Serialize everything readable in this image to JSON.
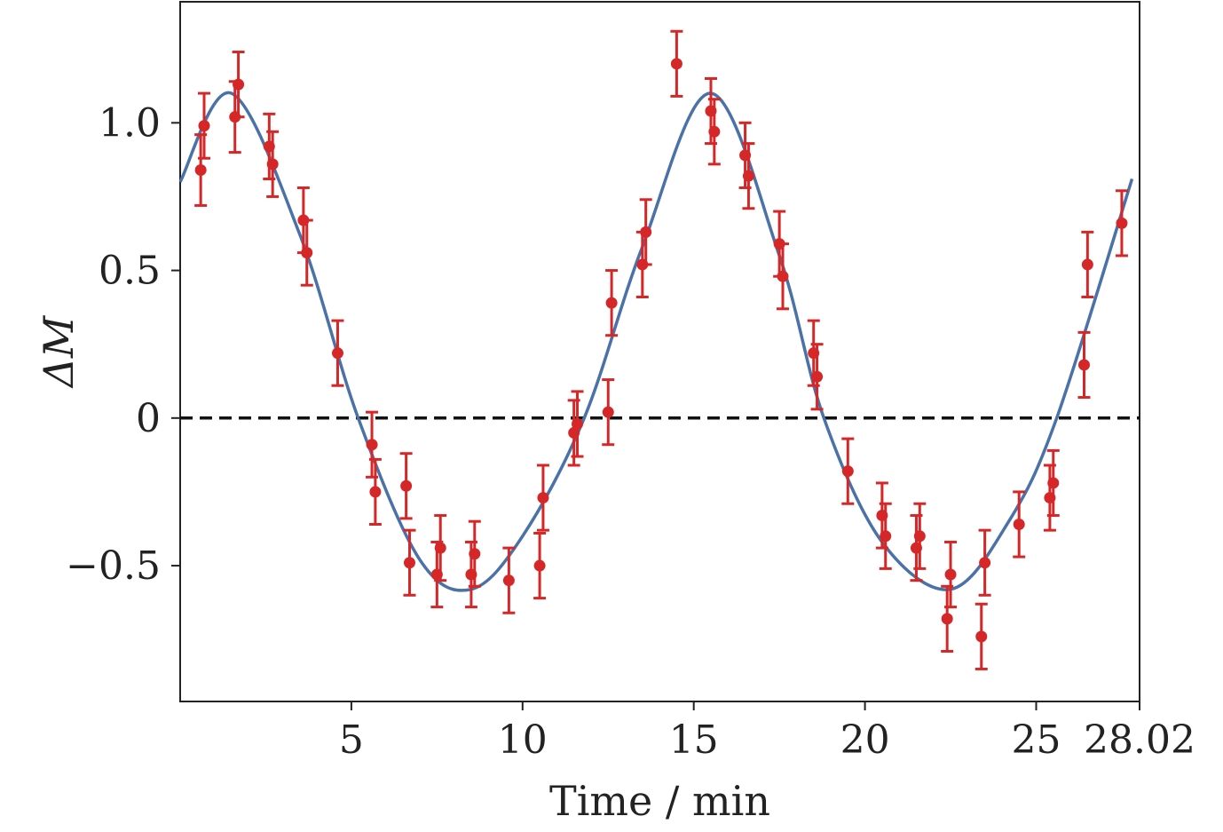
{
  "chart_data": {
    "type": "scatter",
    "title": "",
    "xlabel": "Time / min",
    "ylabel": "ΔM",
    "xlim": [
      0,
      28.02
    ],
    "ylim": [
      -0.96,
      1.41
    ],
    "xticks": [
      5,
      10,
      15,
      20,
      25,
      28.02
    ],
    "xtick_labels": [
      "5",
      "10",
      "15",
      "20",
      "25",
      "28.02"
    ],
    "yticks": [
      -0.5,
      0,
      0.5,
      1.0
    ],
    "ytick_labels": [
      "−0.5",
      "0",
      "0.5",
      "1.0"
    ],
    "grid": false,
    "reference_line": {
      "y": 0,
      "style": "dashed",
      "color": "#111111"
    },
    "fit_curve": {
      "color": "#4a72a8",
      "points": [
        [
          0,
          0.8
        ],
        [
          1.5,
          1.1
        ],
        [
          3.5,
          0.62
        ],
        [
          5.2,
          0.0
        ],
        [
          7,
          -0.48
        ],
        [
          8.5,
          -0.58
        ],
        [
          10,
          -0.4
        ],
        [
          11.8,
          0.0
        ],
        [
          13.5,
          0.58
        ],
        [
          15.5,
          1.1
        ],
        [
          17.5,
          0.55
        ],
        [
          18.8,
          0.0
        ],
        [
          20.5,
          -0.42
        ],
        [
          22.5,
          -0.58
        ],
        [
          24.2,
          -0.35
        ],
        [
          25.6,
          0.0
        ],
        [
          27.8,
          0.81
        ]
      ]
    },
    "series": [
      {
        "color": "#d62728",
        "points": [
          {
            "x": 0.6,
            "y": 0.84,
            "err": 0.12
          },
          {
            "x": 0.7,
            "y": 0.99,
            "err": 0.11
          },
          {
            "x": 1.6,
            "y": 1.02,
            "err": 0.12
          },
          {
            "x": 1.7,
            "y": 1.13,
            "err": 0.11
          },
          {
            "x": 2.6,
            "y": 0.92,
            "err": 0.11
          },
          {
            "x": 2.7,
            "y": 0.86,
            "err": 0.11
          },
          {
            "x": 3.6,
            "y": 0.67,
            "err": 0.11
          },
          {
            "x": 3.7,
            "y": 0.56,
            "err": 0.11
          },
          {
            "x": 4.6,
            "y": 0.22,
            "err": 0.11
          },
          {
            "x": 5.6,
            "y": -0.09,
            "err": 0.11
          },
          {
            "x": 5.7,
            "y": -0.25,
            "err": 0.11
          },
          {
            "x": 6.6,
            "y": -0.23,
            "err": 0.11
          },
          {
            "x": 6.7,
            "y": -0.49,
            "err": 0.11
          },
          {
            "x": 7.5,
            "y": -0.53,
            "err": 0.11
          },
          {
            "x": 7.6,
            "y": -0.44,
            "err": 0.11
          },
          {
            "x": 8.5,
            "y": -0.53,
            "err": 0.11
          },
          {
            "x": 8.6,
            "y": -0.46,
            "err": 0.11
          },
          {
            "x": 9.6,
            "y": -0.55,
            "err": 0.11
          },
          {
            "x": 10.5,
            "y": -0.5,
            "err": 0.11
          },
          {
            "x": 10.6,
            "y": -0.27,
            "err": 0.11
          },
          {
            "x": 11.5,
            "y": -0.05,
            "err": 0.11
          },
          {
            "x": 11.6,
            "y": -0.02,
            "err": 0.11
          },
          {
            "x": 12.5,
            "y": 0.02,
            "err": 0.11
          },
          {
            "x": 12.6,
            "y": 0.39,
            "err": 0.11
          },
          {
            "x": 13.5,
            "y": 0.52,
            "err": 0.11
          },
          {
            "x": 13.6,
            "y": 0.63,
            "err": 0.11
          },
          {
            "x": 14.5,
            "y": 1.2,
            "err": 0.11
          },
          {
            "x": 15.5,
            "y": 1.04,
            "err": 0.11
          },
          {
            "x": 15.6,
            "y": 0.97,
            "err": 0.11
          },
          {
            "x": 16.5,
            "y": 0.89,
            "err": 0.11
          },
          {
            "x": 16.6,
            "y": 0.82,
            "err": 0.11
          },
          {
            "x": 17.5,
            "y": 0.59,
            "err": 0.11
          },
          {
            "x": 17.6,
            "y": 0.48,
            "err": 0.11
          },
          {
            "x": 18.5,
            "y": 0.22,
            "err": 0.11
          },
          {
            "x": 18.6,
            "y": 0.14,
            "err": 0.11
          },
          {
            "x": 19.5,
            "y": -0.18,
            "err": 0.11
          },
          {
            "x": 20.5,
            "y": -0.33,
            "err": 0.11
          },
          {
            "x": 20.6,
            "y": -0.4,
            "err": 0.11
          },
          {
            "x": 21.5,
            "y": -0.44,
            "err": 0.11
          },
          {
            "x": 21.6,
            "y": -0.4,
            "err": 0.11
          },
          {
            "x": 22.4,
            "y": -0.68,
            "err": 0.11
          },
          {
            "x": 22.5,
            "y": -0.53,
            "err": 0.11
          },
          {
            "x": 23.4,
            "y": -0.74,
            "err": 0.11
          },
          {
            "x": 23.5,
            "y": -0.49,
            "err": 0.11
          },
          {
            "x": 24.5,
            "y": -0.36,
            "err": 0.11
          },
          {
            "x": 25.4,
            "y": -0.27,
            "err": 0.11
          },
          {
            "x": 25.5,
            "y": -0.22,
            "err": 0.11
          },
          {
            "x": 26.4,
            "y": 0.18,
            "err": 0.11
          },
          {
            "x": 26.5,
            "y": 0.52,
            "err": 0.11
          },
          {
            "x": 27.5,
            "y": 0.66,
            "err": 0.11
          }
        ]
      }
    ]
  }
}
